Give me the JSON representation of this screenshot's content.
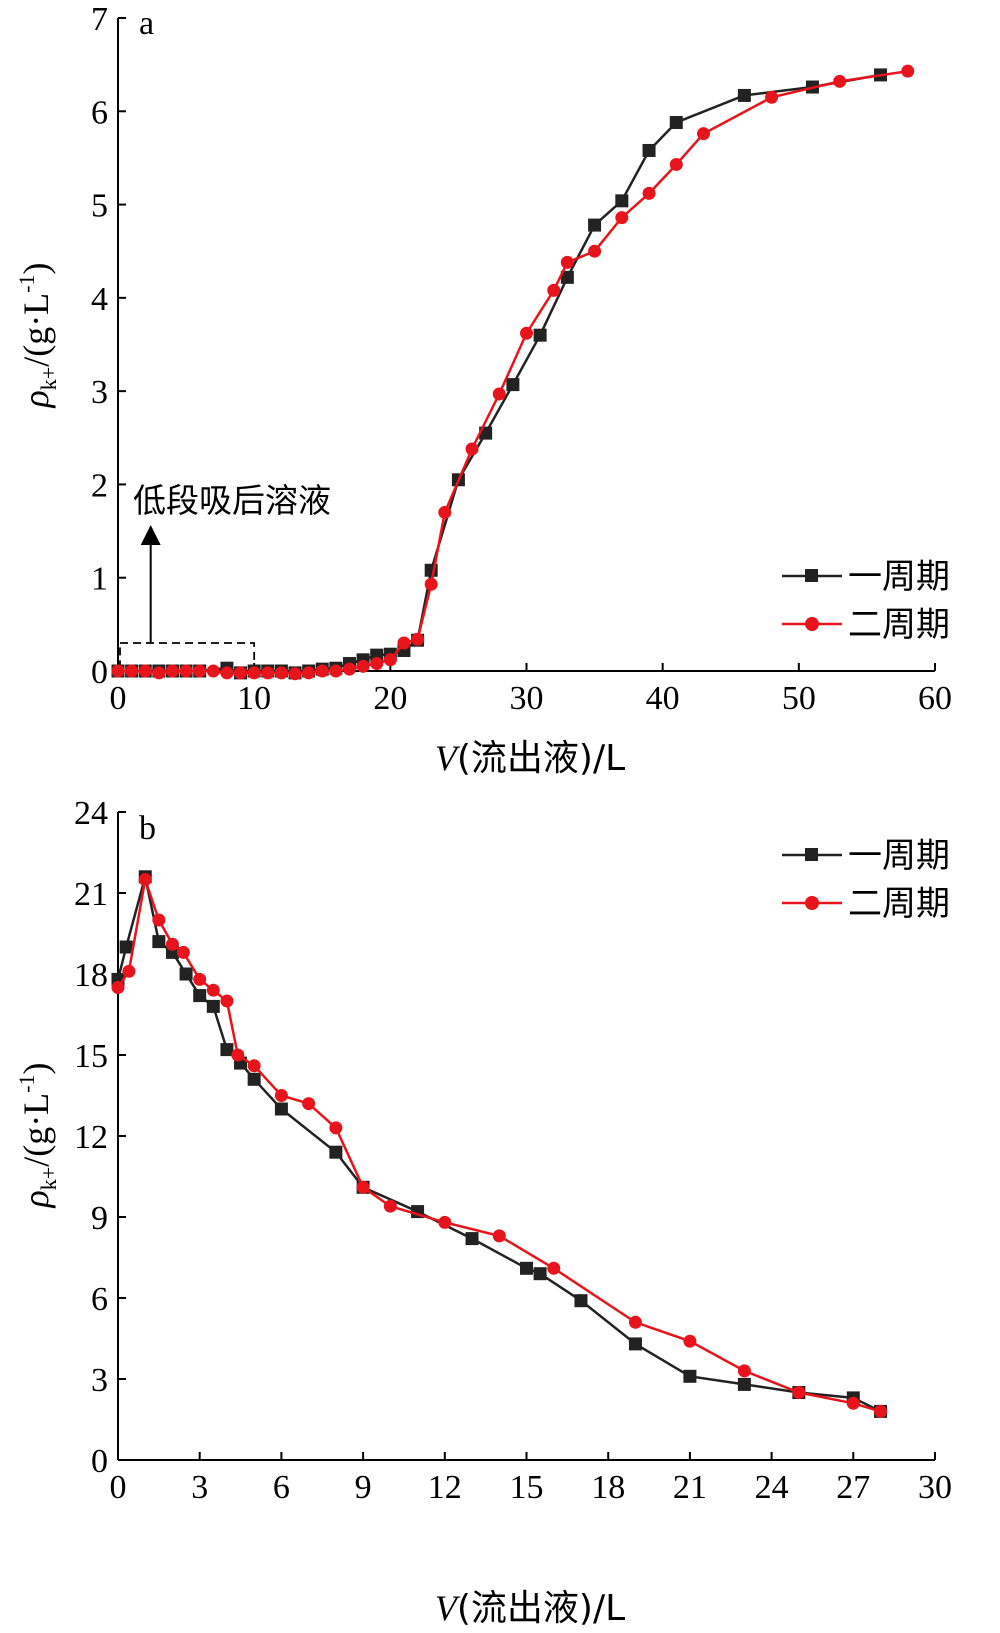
{
  "colors": {
    "cycle1": "#222222",
    "cycle2": "#e8141b",
    "axis": "#000000"
  },
  "chart_data": [
    {
      "type": "line",
      "panel_label": "a",
      "xlabel_var": "V",
      "xlabel_rest": "(流出液)/L",
      "ylabel_main": "ρ",
      "ylabel_sub": "k+",
      "ylabel_rest": "/(g·L",
      "ylabel_sup": "-1",
      "ylabel_end": ")",
      "xlim": [
        0,
        60
      ],
      "ylim": [
        0,
        7
      ],
      "xticks": [
        "0",
        "10",
        "20",
        "30",
        "40",
        "50",
        "60"
      ],
      "yticks": [
        "0",
        "1",
        "2",
        "3",
        "4",
        "5",
        "6",
        "7"
      ],
      "legend_position": "right",
      "annotation": "低段吸后溶液",
      "annotation_box": {
        "x0": 0,
        "x1": 10,
        "y0": 0,
        "y1": 0.3
      },
      "series": [
        {
          "name": "一周期",
          "marker": "square",
          "color": "#222222",
          "x": [
            0,
            1,
            2,
            3,
            4,
            5,
            6,
            8,
            9,
            10,
            11,
            12,
            13,
            14,
            15,
            16,
            17,
            18,
            19,
            20,
            21,
            22,
            23,
            25,
            27,
            29,
            31,
            33,
            35,
            37,
            39,
            41,
            46,
            51,
            56
          ],
          "y": [
            0,
            0,
            0,
            0,
            0,
            0,
            0,
            0.03,
            -0.02,
            0,
            0,
            0,
            -0.02,
            0,
            0.02,
            0.03,
            0.08,
            0.12,
            0.17,
            0.18,
            0.22,
            0.33,
            1.08,
            2.05,
            2.55,
            3.07,
            3.6,
            4.22,
            4.78,
            5.04,
            5.58,
            5.88,
            6.17,
            6.26,
            6.39
          ]
        },
        {
          "name": "二周期",
          "marker": "circle",
          "color": "#e8141b",
          "x": [
            0,
            1,
            2,
            3,
            4,
            5,
            6,
            7,
            8,
            9,
            10,
            11,
            12,
            13,
            14,
            15,
            16,
            17,
            18,
            19,
            20,
            21,
            22,
            23,
            24,
            26,
            28,
            30,
            32,
            33,
            35,
            37,
            39,
            41,
            43,
            48,
            53,
            58
          ],
          "y": [
            0,
            0,
            0,
            -0.02,
            0,
            0,
            0,
            0,
            -0.02,
            -0.02,
            -0.02,
            -0.02,
            -0.02,
            -0.03,
            -0.02,
            0,
            0,
            0.02,
            0.05,
            0.08,
            0.12,
            0.3,
            0.34,
            0.93,
            1.7,
            2.38,
            2.97,
            3.62,
            4.08,
            4.38,
            4.5,
            4.86,
            5.12,
            5.43,
            5.76,
            6.15,
            6.32,
            6.43
          ]
        }
      ]
    },
    {
      "type": "line",
      "panel_label": "b",
      "xlabel_var": "V",
      "xlabel_rest": "(流出液)/L",
      "ylabel_main": "ρ",
      "ylabel_sub": "k+",
      "ylabel_rest": "/(g·L",
      "ylabel_sup": "-1",
      "ylabel_end": ")",
      "xlim": [
        0,
        30
      ],
      "ylim": [
        0,
        24
      ],
      "xticks": [
        "0",
        "3",
        "6",
        "9",
        "12",
        "15",
        "18",
        "21",
        "24",
        "27",
        "30"
      ],
      "yticks": [
        "0",
        "3",
        "6",
        "9",
        "12",
        "15",
        "18",
        "21",
        "24"
      ],
      "legend_position": "top-right",
      "series": [
        {
          "name": "一周期",
          "marker": "square",
          "color": "#222222",
          "x": [
            0,
            0.3,
            1,
            1.5,
            2,
            2.5,
            3,
            3.5,
            4,
            4.5,
            5,
            6,
            8,
            9,
            11,
            13,
            15,
            15.5,
            17,
            19,
            21,
            23,
            25,
            27,
            28
          ],
          "y": [
            17.8,
            19.0,
            21.6,
            19.2,
            18.8,
            18.0,
            17.2,
            16.8,
            15.2,
            14.7,
            14.1,
            13.0,
            11.4,
            10.1,
            9.2,
            8.2,
            7.1,
            6.9,
            5.9,
            4.3,
            3.1,
            2.8,
            2.5,
            2.3,
            1.8
          ]
        },
        {
          "name": "二周期",
          "marker": "circle",
          "color": "#e8141b",
          "x": [
            0,
            0.4,
            1,
            1.5,
            2,
            2.4,
            3,
            3.5,
            4,
            4.4,
            5,
            6,
            7,
            8,
            9,
            10,
            12,
            14,
            16,
            19,
            21,
            23,
            25,
            27,
            28
          ],
          "y": [
            17.5,
            18.1,
            21.5,
            20.0,
            19.1,
            18.8,
            17.8,
            17.4,
            17.0,
            15.0,
            14.6,
            13.5,
            13.2,
            12.3,
            10.1,
            9.4,
            8.8,
            8.3,
            7.1,
            5.1,
            4.4,
            3.3,
            2.5,
            2.1,
            1.8
          ]
        }
      ]
    }
  ]
}
